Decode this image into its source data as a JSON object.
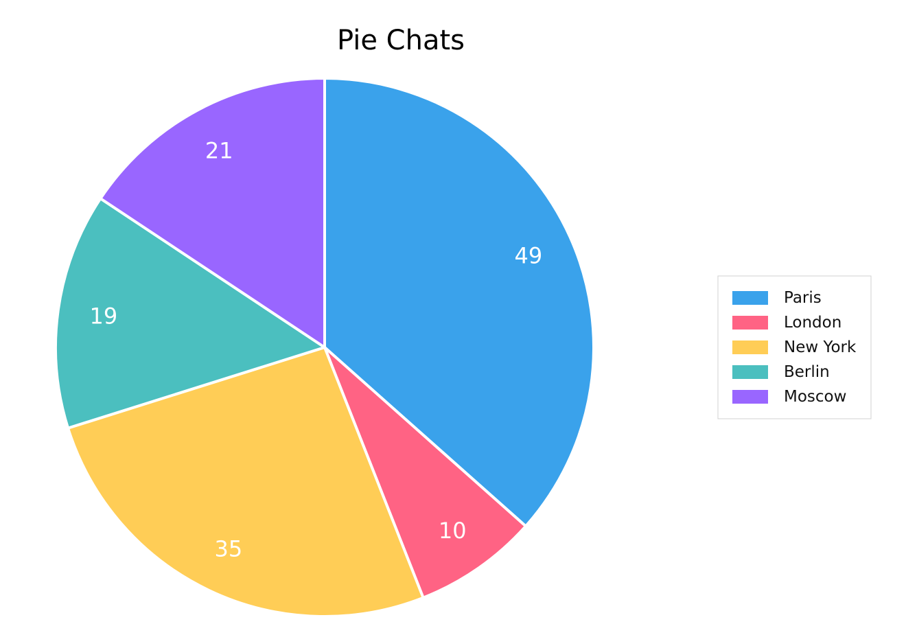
{
  "chart_data": {
    "type": "pie",
    "title": "Pie Chats",
    "categories": [
      "Paris",
      "London",
      "New York",
      "Berlin",
      "Moscow"
    ],
    "values": [
      49,
      10,
      35,
      19,
      21
    ],
    "colors": [
      "#3aa2eb",
      "#ff6384",
      "#ffcd56",
      "#4bbfbf",
      "#9966ff"
    ],
    "show_value_labels": true,
    "legend": {
      "position": "right",
      "items": [
        "Paris",
        "London",
        "New York",
        "Berlin",
        "Moscow"
      ]
    },
    "slice_border_color": "#ffffff"
  }
}
